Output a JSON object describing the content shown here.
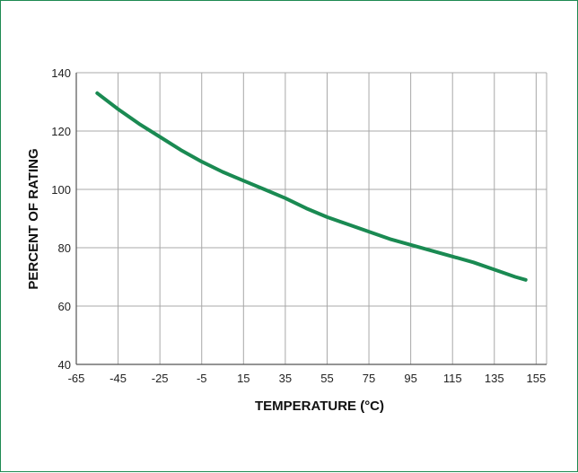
{
  "chart_data": {
    "type": "line",
    "xlabel": "TEMPERATURE (°C)",
    "ylabel": "PERCENT OF RATING",
    "xlim": [
      -65,
      160
    ],
    "ylim": [
      40,
      140
    ],
    "x_ticks": [
      "-65",
      "-45",
      "-25",
      "-5",
      "15",
      "35",
      "55",
      "75",
      "95",
      "115",
      "135",
      "155"
    ],
    "x_tick_values": [
      -65,
      -45,
      -25,
      -5,
      15,
      35,
      55,
      75,
      95,
      115,
      135,
      155
    ],
    "y_ticks": [
      "40",
      "60",
      "80",
      "100",
      "120",
      "140"
    ],
    "y_tick_values": [
      40,
      60,
      80,
      100,
      120,
      140
    ],
    "grid": true,
    "line_color": "#1a8a52",
    "grid_color": "#a8a8a8",
    "series": [
      {
        "x": [
          -55,
          -45,
          -35,
          -25,
          -15,
          -5,
          5,
          15,
          25,
          35,
          45,
          55,
          65,
          75,
          85,
          95,
          105,
          115,
          125,
          135,
          145,
          150
        ],
        "values": [
          133,
          127.5,
          122.5,
          118,
          113.5,
          109.5,
          106,
          103,
          100,
          97,
          93.5,
          90.5,
          88,
          85.5,
          83,
          81,
          79,
          77,
          75,
          72.5,
          70,
          69
        ]
      }
    ]
  }
}
